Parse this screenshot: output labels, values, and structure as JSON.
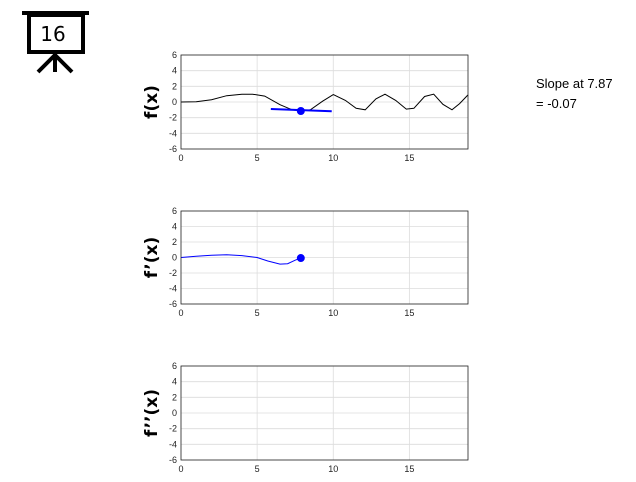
{
  "presentation_icon": {
    "icon": "projector-screen-icon",
    "number": "16"
  },
  "slope_readout": {
    "line1": "Slope at 7.87",
    "line2": "= -0.07"
  },
  "colors": {
    "function": "#000000",
    "derivative": "#0000ff",
    "marker": "#0000ff",
    "grid": "#dcdcdc"
  },
  "chart_data": [
    {
      "type": "line",
      "ylabel": "f(x)",
      "xlim": [
        0,
        18.85
      ],
      "ylim": [
        -6,
        6
      ],
      "xticks": [
        0,
        5,
        10,
        15
      ],
      "yticks": [
        -6,
        -4,
        -2,
        0,
        2,
        4,
        6
      ],
      "grid": true,
      "series": [
        {
          "x": [
            0,
            1,
            2,
            3,
            4,
            4.7,
            5.5,
            6.5,
            7.3,
            7.87,
            8.5,
            9.3,
            10.0,
            10.8,
            11.5,
            12.1,
            12.8,
            13.4,
            14.1,
            14.8,
            15.3,
            16.0,
            16.6,
            17.2,
            17.8,
            18.3,
            18.85
          ],
          "y": [
            0,
            0.04,
            0.3,
            0.8,
            1.0,
            1.0,
            0.75,
            -0.35,
            -1.0,
            -1.15,
            -1.0,
            0.1,
            0.95,
            0.2,
            -0.8,
            -1.0,
            0.4,
            1.0,
            0.2,
            -0.9,
            -0.8,
            0.7,
            1.0,
            -0.3,
            -1.0,
            -0.2,
            0.9
          ]
        }
      ],
      "marker": {
        "x": 7.87,
        "y": -1.15
      },
      "tangent": {
        "x": [
          5.9,
          9.9
        ],
        "y": [
          -0.9,
          -1.18
        ]
      }
    },
    {
      "type": "line",
      "ylabel": "f’(x)",
      "xlim": [
        0,
        18.85
      ],
      "ylim": [
        -6,
        6
      ],
      "xticks": [
        0,
        5,
        10,
        15
      ],
      "yticks": [
        -6,
        -4,
        -2,
        0,
        2,
        4,
        6
      ],
      "grid": true,
      "series": [
        {
          "x": [
            0,
            1,
            2,
            3,
            4,
            5,
            5.7,
            6.5,
            7.0,
            7.5,
            7.87
          ],
          "y": [
            0,
            0.15,
            0.3,
            0.35,
            0.25,
            0.0,
            -0.45,
            -0.85,
            -0.8,
            -0.35,
            -0.07
          ]
        }
      ],
      "marker": {
        "x": 7.87,
        "y": -0.07
      }
    },
    {
      "type": "line",
      "ylabel": "f’’(x)",
      "xlim": [
        0,
        18.85
      ],
      "ylim": [
        -6,
        6
      ],
      "xticks": [
        0,
        5,
        10,
        15
      ],
      "yticks": [
        -6,
        -4,
        -2,
        0,
        2,
        4,
        6
      ],
      "grid": true,
      "series": []
    }
  ]
}
